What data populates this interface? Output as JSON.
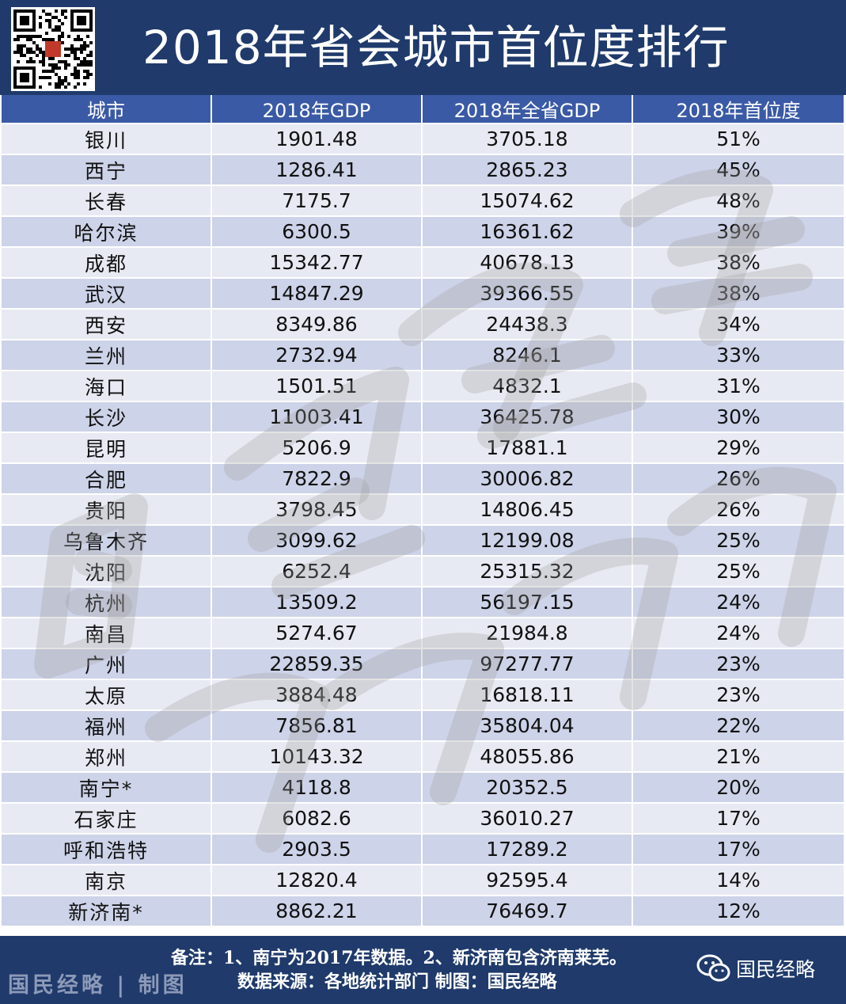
{
  "title": "2018年省会城市首位度排行",
  "colors": {
    "header_bg": "#1f3a6b",
    "table_header_bg": "#3a5aa6",
    "row_light": "#e8eaf3",
    "row_dark": "#cdd3e8"
  },
  "table": {
    "headers": [
      "城市",
      "2018年GDP",
      "2018年全省GDP",
      "2018年首位度"
    ],
    "rows": [
      [
        "银川",
        "1901.48",
        "3705.18",
        "51%"
      ],
      [
        "西宁",
        "1286.41",
        "2865.23",
        "45%"
      ],
      [
        "长春",
        "7175.7",
        "15074.62",
        "48%"
      ],
      [
        "哈尔滨",
        "6300.5",
        "16361.62",
        "39%"
      ],
      [
        "成都",
        "15342.77",
        "40678.13",
        "38%"
      ],
      [
        "武汉",
        "14847.29",
        "39366.55",
        "38%"
      ],
      [
        "西安",
        "8349.86",
        "24438.3",
        "34%"
      ],
      [
        "兰州",
        "2732.94",
        "8246.1",
        "33%"
      ],
      [
        "海口",
        "1501.51",
        "4832.1",
        "31%"
      ],
      [
        "长沙",
        "11003.41",
        "36425.78",
        "30%"
      ],
      [
        "昆明",
        "5206.9",
        "17881.1",
        "29%"
      ],
      [
        "合肥",
        "7822.9",
        "30006.82",
        "26%"
      ],
      [
        "贵阳",
        "3798.45",
        "14806.45",
        "26%"
      ],
      [
        "乌鲁木齐",
        "3099.62",
        "12199.08",
        "25%"
      ],
      [
        "沈阳",
        "6252.4",
        "25315.32",
        "25%"
      ],
      [
        "杭州",
        "13509.2",
        "56197.15",
        "24%"
      ],
      [
        "南昌",
        "5274.67",
        "21984.8",
        "24%"
      ],
      [
        "广州",
        "22859.35",
        "97277.77",
        "23%"
      ],
      [
        "太原",
        "3884.48",
        "16818.11",
        "23%"
      ],
      [
        "福州",
        "7856.81",
        "35804.04",
        "22%"
      ],
      [
        "郑州",
        "10143.32",
        "48055.86",
        "21%"
      ],
      [
        "南宁*",
        "4118.8",
        "20352.5",
        "20%"
      ],
      [
        "石家庄",
        "6082.6",
        "36010.27",
        "17%"
      ],
      [
        "呼和浩特",
        "2903.5",
        "17289.2",
        "17%"
      ],
      [
        "南京",
        "12820.4",
        "92595.4",
        "14%"
      ],
      [
        "新济南*",
        "8862.21",
        "76469.7",
        "12%"
      ]
    ]
  },
  "qr_stamp_text": "国民经略",
  "watermark_text": "国民经略",
  "footer": {
    "brand": "国民经略 | 制图",
    "note": "备注：1、南宁为2017年数据。2、新济南包含济南莱芜。",
    "source": "数据来源：各地统计部门 制图：国民经略",
    "wechat_label": "国民经略",
    "wechat_icon": "wechat-icon"
  }
}
